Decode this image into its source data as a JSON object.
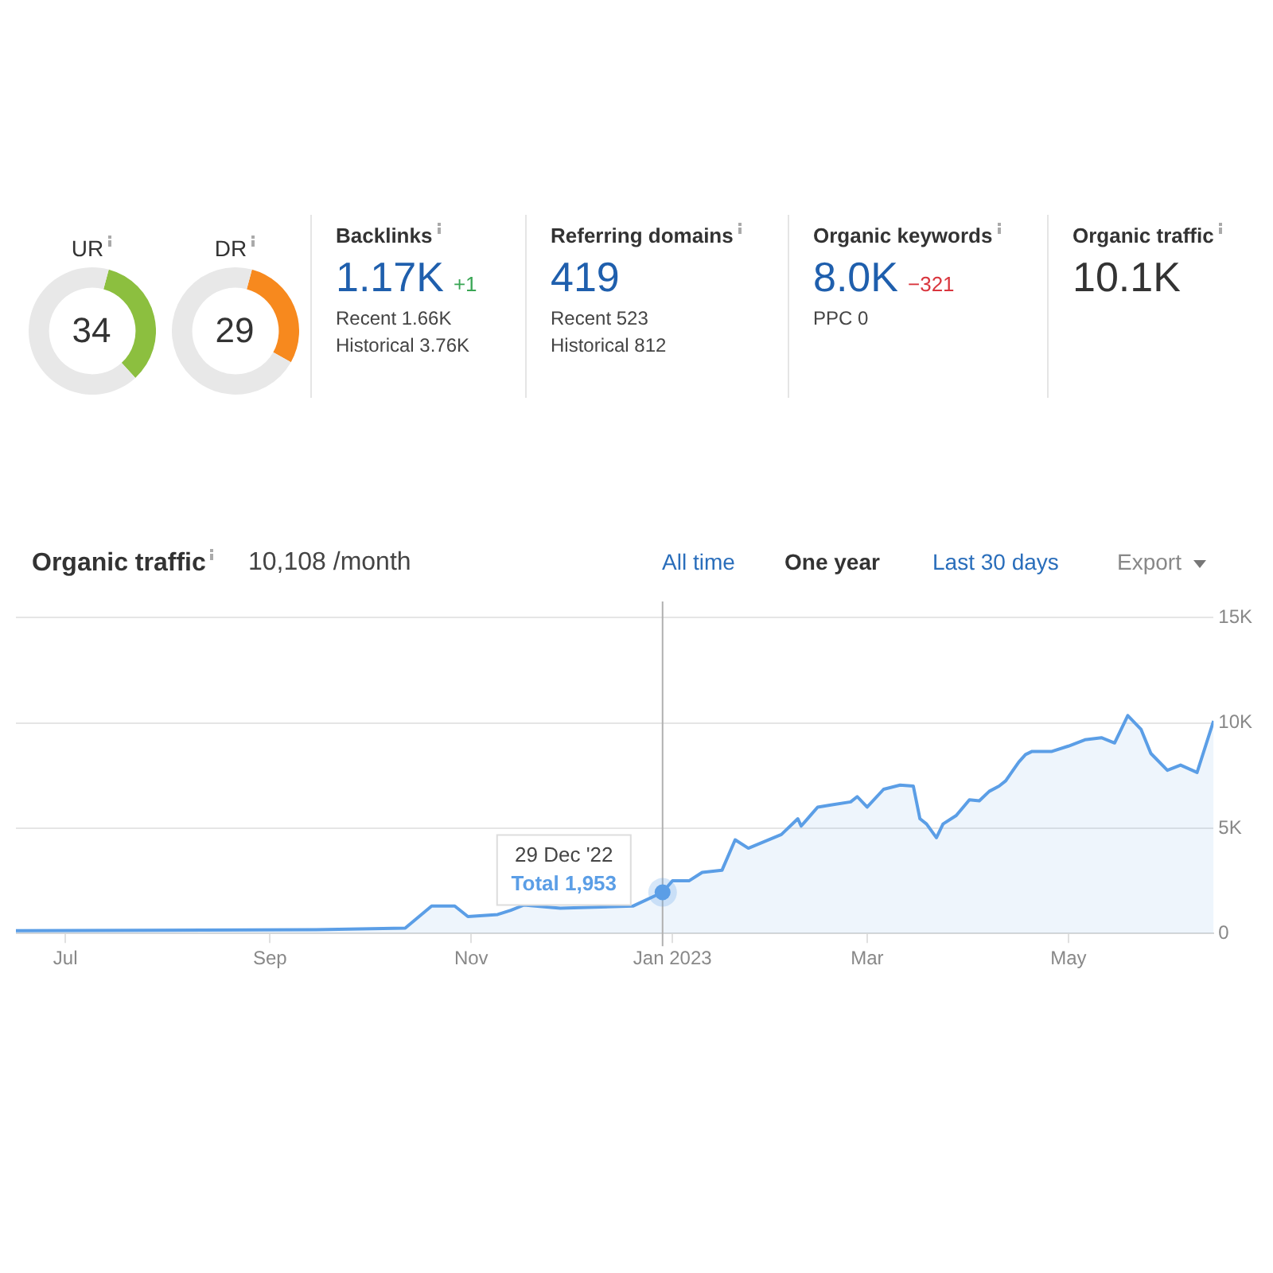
{
  "chart_data": [
    {
      "type": "donut",
      "title": "UR",
      "categories": [
        null,
        null
      ],
      "values": [
        34,
        66
      ],
      "colors": [
        "#8cbf3f",
        "#e8e8e8"
      ],
      "annotations": [
        "34"
      ]
    },
    {
      "type": "donut",
      "title": "DR",
      "categories": [
        null,
        null
      ],
      "values": [
        29,
        71
      ],
      "colors": [
        "#f7891e",
        "#e8e8e8"
      ],
      "annotations": [
        "29"
      ]
    },
    {
      "type": "other",
      "title": "Backlinks",
      "annotations": [
        "1.17K +1",
        "Recent 1.66K",
        "Historical 3.76K"
      ],
      "colors": [
        "#1f5fad",
        "#3aa655"
      ]
    },
    {
      "type": "other",
      "title": "Referring domains",
      "annotations": [
        "419",
        "Recent 523",
        "Historical 812"
      ],
      "colors": [
        "#1f5fad"
      ]
    },
    {
      "type": "other",
      "title": "Organic keywords",
      "annotations": [
        "8.0K −321",
        "PPC 0"
      ],
      "colors": [
        "#1f5fad",
        "#d9363e"
      ]
    },
    {
      "type": "other",
      "title": "Organic traffic",
      "annotations": [
        "10.1K"
      ],
      "colors": [
        "#333333"
      ]
    },
    {
      "type": "area",
      "title": "Organic traffic",
      "subtitle": "10,108 /month",
      "annotations": [
        "All time",
        "One year",
        "Last 30 days",
        "Export",
        {
          "text": "29 Dec '22",
          "x": "2022-12-29",
          "y": 1953
        },
        {
          "text": "Total 1,953",
          "x": "2022-12-29",
          "y": 1953
        }
      ],
      "x": [
        "2022-06-16",
        "2022-07-26",
        "2022-09-15",
        "2022-10-12",
        "2022-10-20",
        "2022-10-27",
        "2022-10-31",
        "2022-11-09",
        "2022-11-13",
        "2022-11-17",
        "2022-11-21",
        "2022-11-28",
        "2022-12-20",
        "2022-12-29",
        "2023-01-01",
        "2023-01-06",
        "2023-01-10",
        "2023-01-16",
        "2023-01-20",
        "2023-01-24",
        "2023-02-03",
        "2023-02-08",
        "2023-02-09",
        "2023-02-14",
        "2023-02-18",
        "2023-02-24",
        "2023-02-26",
        "2023-03-01",
        "2023-03-06",
        "2023-03-11",
        "2023-03-15",
        "2023-03-17",
        "2023-03-19",
        "2023-03-22",
        "2023-03-24",
        "2023-03-28",
        "2023-04-01",
        "2023-04-04",
        "2023-04-07",
        "2023-04-10",
        "2023-04-12",
        "2023-04-16",
        "2023-04-18",
        "2023-04-20",
        "2023-04-26",
        "2023-05-01",
        "2023-05-06",
        "2023-05-11",
        "2023-05-15",
        "2023-05-19",
        "2023-05-23",
        "2023-05-26",
        "2023-05-31",
        "2023-06-04",
        "2023-06-09",
        "2023-06-14"
      ],
      "series": [
        {
          "color": "#5b9ee6",
          "values": [
            130,
            150,
            180,
            250,
            1300,
            1300,
            800,
            900,
            1100,
            1350,
            null,
            1200,
            1300,
            1953,
            2500,
            2500,
            2900,
            3000,
            4450,
            4050,
            4700,
            5450,
            5100,
            6000,
            6100,
            6250,
            6500,
            6000,
            6850,
            7050,
            7000,
            5450,
            5200,
            4550,
            5200,
            5600,
            6350,
            6300,
            6750,
            7000,
            7250,
            8150,
            8500,
            8650,
            8650,
            8900,
            9200,
            9300,
            9050,
            10350,
            9700,
            8550,
            7750,
            8000,
            7650,
            10100
          ]
        }
      ],
      "xlim": [
        "2022-06-16",
        "2023-06-14"
      ],
      "xticks": [
        {
          "value": "2022-07-01",
          "label": "Jul"
        },
        {
          "value": "2022-09-01",
          "label": "Sep"
        },
        {
          "value": "2022-11-01",
          "label": "Nov"
        },
        {
          "value": "2023-01-01",
          "label": "Jan 2023"
        },
        {
          "value": "2023-03-01",
          "label": "Mar"
        },
        {
          "value": "2023-05-01",
          "label": "May"
        }
      ],
      "ylim": [
        0,
        15000
      ],
      "yticks": [
        0,
        {
          "value": 5000,
          "label": "5K"
        },
        {
          "value": 10000,
          "label": "10K"
        },
        {
          "value": 15000,
          "label": "15K"
        }
      ],
      "ref_lines": [
        {
          "axis": "x",
          "value": "2022-12-29",
          "color": "#b0b0b0"
        }
      ],
      "grid": "y"
    }
  ]
}
